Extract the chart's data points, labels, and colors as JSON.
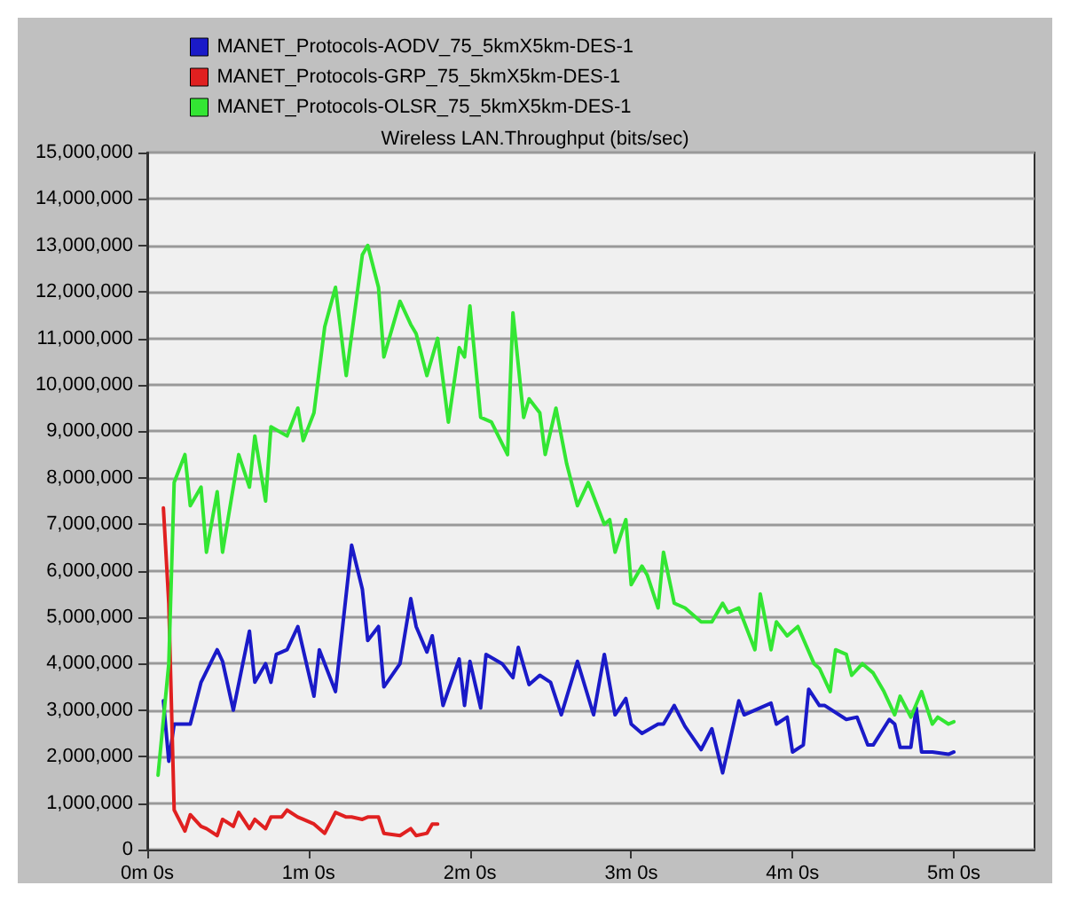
{
  "chart_data": {
    "type": "line",
    "title": "Wireless LAN.Throughput (bits/sec)",
    "legend": "top left",
    "grid": "y",
    "marker": "none",
    "line_style": "solid",
    "categories": [
      "0m 0s",
      null,
      null,
      null,
      null,
      null,
      null,
      null,
      null,
      null,
      null,
      null,
      null,
      null,
      null,
      null,
      null,
      null,
      null,
      null,
      null,
      null,
      null,
      null,
      null,
      null,
      null,
      null,
      null,
      null,
      "1m 0s",
      null,
      null,
      null,
      null,
      null,
      null,
      null,
      null,
      null,
      null,
      null,
      null,
      null,
      null,
      null,
      null,
      null,
      null,
      null,
      null,
      null,
      null,
      null,
      null,
      null,
      null,
      null,
      null,
      null,
      "2m 0s",
      null,
      null,
      null,
      null,
      null,
      null,
      null,
      null,
      null,
      null,
      null,
      null,
      null,
      null,
      null,
      null,
      null,
      null,
      null,
      null,
      null,
      null,
      null,
      null,
      null,
      null,
      null,
      null,
      null,
      "3m 0s",
      null,
      null,
      null,
      null,
      null,
      null,
      null,
      null,
      null,
      null,
      null,
      null,
      null,
      null,
      null,
      null,
      null,
      null,
      null,
      null,
      null,
      null,
      null,
      null,
      null,
      null,
      null,
      null,
      null,
      "4m 0s",
      null,
      null,
      null,
      null,
      null,
      null,
      null,
      null,
      null,
      null,
      null,
      null,
      null,
      null,
      null,
      null,
      null,
      null,
      null,
      null,
      null,
      null,
      null,
      null,
      null,
      null,
      null,
      null,
      null,
      "5m 0s",
      null,
      null,
      null,
      null,
      null,
      null,
      null,
      null,
      null,
      null,
      null,
      null,
      null,
      null,
      null
    ],
    "ylim": [
      0,
      15000000
    ],
    "yticks": [
      {
        "value": 0,
        "label": "0"
      },
      {
        "value": 1000000,
        "label": "1,000,000"
      },
      {
        "value": 2000000,
        "label": "2,000,000"
      },
      {
        "value": 3000000,
        "label": "3,000,000"
      },
      {
        "value": 4000000,
        "label": "4,000,000"
      },
      {
        "value": 5000000,
        "label": "5,000,000"
      },
      {
        "value": 6000000,
        "label": "6,000,000"
      },
      {
        "value": 7000000,
        "label": "7,000,000"
      },
      {
        "value": 8000000,
        "label": "8,000,000"
      },
      {
        "value": 9000000,
        "label": "9,000,000"
      },
      {
        "value": 10000000,
        "label": "10,000,000"
      },
      {
        "value": 11000000,
        "label": "11,000,000"
      },
      {
        "value": 12000000,
        "label": "12,000,000"
      },
      {
        "value": 13000000,
        "label": "13,000,000"
      },
      {
        "value": 14000000,
        "label": "14,000,000"
      },
      {
        "value": 15000000,
        "label": "15,000,000"
      }
    ],
    "series": [
      {
        "name": "MANET_Protocols-AODV_75_5kmX5km-DES-1",
        "color": "#1a1ac8",
        "values": [
          null,
          null,
          null,
          3200000,
          1900000,
          2700000,
          null,
          null,
          2700000,
          null,
          3600000,
          null,
          null,
          4300000,
          4050000,
          null,
          3000000,
          null,
          null,
          4700000,
          3600000,
          null,
          4000000,
          3600000,
          4200000,
          null,
          4300000,
          null,
          4800000,
          null,
          null,
          3300000,
          4300000,
          null,
          null,
          3400000,
          null,
          null,
          6550000,
          null,
          5600000,
          4500000,
          null,
          4800000,
          3500000,
          null,
          null,
          4000000,
          null,
          5400000,
          4800000,
          null,
          4250000,
          4600000,
          null,
          3100000,
          null,
          null,
          4100000,
          3100000,
          4050000,
          null,
          3050000,
          4200000,
          null,
          null,
          4000000,
          null,
          3700000,
          4350000,
          null,
          3550000,
          null,
          3750000,
          null,
          3600000,
          null,
          2900000,
          null,
          null,
          4050000,
          null,
          null,
          2900000,
          null,
          4200000,
          null,
          2900000,
          null,
          3250000,
          2700000,
          null,
          2500000,
          null,
          null,
          2700000,
          2700000,
          null,
          3100000,
          null,
          2650000,
          null,
          null,
          2150000,
          null,
          2600000,
          null,
          1650000,
          null,
          null,
          3200000,
          2900000,
          null,
          null,
          null,
          null,
          3150000,
          2700000,
          null,
          2850000,
          2100000,
          null,
          2250000,
          3450000,
          null,
          3100000,
          3100000,
          null,
          null,
          null,
          2800000,
          null,
          2850000,
          null,
          2250000,
          2250000,
          null,
          null,
          2800000,
          2700000,
          2200000,
          null,
          2200000,
          3050000,
          2100000,
          null,
          2100000,
          null,
          null,
          2050000,
          2100000,
          null,
          null,
          null,
          null,
          null,
          null,
          null,
          null,
          null,
          null,
          null,
          null,
          null,
          null,
          null
        ]
      },
      {
        "name": "MANET_Protocols-GRP_75_5kmX5km-DES-1",
        "color": "#e02020",
        "values": [
          null,
          null,
          null,
          7350000,
          5300000,
          850000,
          null,
          400000,
          750000,
          null,
          500000,
          450000,
          null,
          300000,
          650000,
          null,
          500000,
          800000,
          null,
          450000,
          650000,
          null,
          450000,
          700000,
          null,
          700000,
          850000,
          null,
          700000,
          650000,
          null,
          550000,
          450000,
          350000,
          null,
          800000,
          null,
          700000,
          700000,
          null,
          650000,
          700000,
          null,
          700000,
          350000,
          null,
          null,
          300000,
          null,
          450000,
          300000,
          null,
          350000,
          550000,
          550000,
          null,
          null,
          null,
          null,
          null,
          null,
          null,
          null,
          null,
          null,
          null,
          null,
          null,
          null,
          null,
          null,
          null,
          null,
          null,
          null,
          null,
          null,
          null,
          null,
          null,
          null,
          null,
          null,
          null,
          null,
          null,
          null,
          null,
          null,
          null,
          null,
          null,
          null,
          null,
          null,
          null,
          null,
          null,
          null,
          null,
          null,
          null,
          null,
          null,
          null,
          null,
          null,
          null,
          null,
          null,
          null,
          null,
          null,
          null,
          null,
          null,
          null,
          null,
          null,
          null,
          null,
          null,
          null,
          null,
          null,
          null,
          null,
          null,
          null,
          null,
          null,
          null,
          null,
          null,
          null,
          null,
          null,
          null,
          null,
          null,
          null,
          null,
          null,
          null,
          null,
          null,
          null,
          null,
          null,
          null,
          null,
          null,
          null,
          null,
          null,
          null,
          null,
          null,
          null,
          null,
          null,
          null,
          null,
          null,
          null,
          null
        ]
      },
      {
        "name": "MANET_Protocols-OLSR_75_5kmX5km-DES-1",
        "color": "#33e633",
        "values": [
          null,
          null,
          1600000,
          null,
          4000000,
          7900000,
          null,
          8500000,
          7400000,
          null,
          7800000,
          6400000,
          null,
          7700000,
          6400000,
          null,
          null,
          8500000,
          null,
          7800000,
          8900000,
          null,
          7500000,
          9100000,
          null,
          null,
          8900000,
          null,
          9500000,
          8800000,
          null,
          9400000,
          null,
          11250000,
          null,
          12100000,
          null,
          10200000,
          null,
          null,
          12800000,
          13000000,
          null,
          12100000,
          10600000,
          null,
          null,
          11800000,
          null,
          11300000,
          11100000,
          null,
          10200000,
          null,
          11000000,
          null,
          9200000,
          null,
          10800000,
          10600000,
          11700000,
          null,
          9300000,
          null,
          9200000,
          null,
          null,
          8500000,
          11550000,
          null,
          9300000,
          9700000,
          null,
          9400000,
          8500000,
          null,
          9500000,
          null,
          8300000,
          null,
          7400000,
          null,
          7900000,
          null,
          null,
          7000000,
          7100000,
          6400000,
          null,
          7100000,
          5700000,
          null,
          6100000,
          5900000,
          null,
          5200000,
          6400000,
          null,
          5300000,
          null,
          5200000,
          null,
          null,
          4900000,
          null,
          4900000,
          null,
          5300000,
          5100000,
          null,
          5200000,
          null,
          null,
          4300000,
          5500000,
          null,
          4300000,
          4900000,
          null,
          4600000,
          null,
          4800000,
          null,
          null,
          4000000,
          3900000,
          null,
          3400000,
          4300000,
          null,
          4200000,
          3750000,
          null,
          4000000,
          null,
          3800000,
          null,
          3400000,
          null,
          2900000,
          3300000,
          null,
          2850000,
          null,
          3400000,
          null,
          2700000,
          2850000,
          null,
          2700000,
          2750000,
          null,
          null,
          null,
          null,
          null,
          null,
          null,
          null,
          null,
          null,
          null,
          null,
          null,
          null,
          null
        ]
      }
    ]
  }
}
